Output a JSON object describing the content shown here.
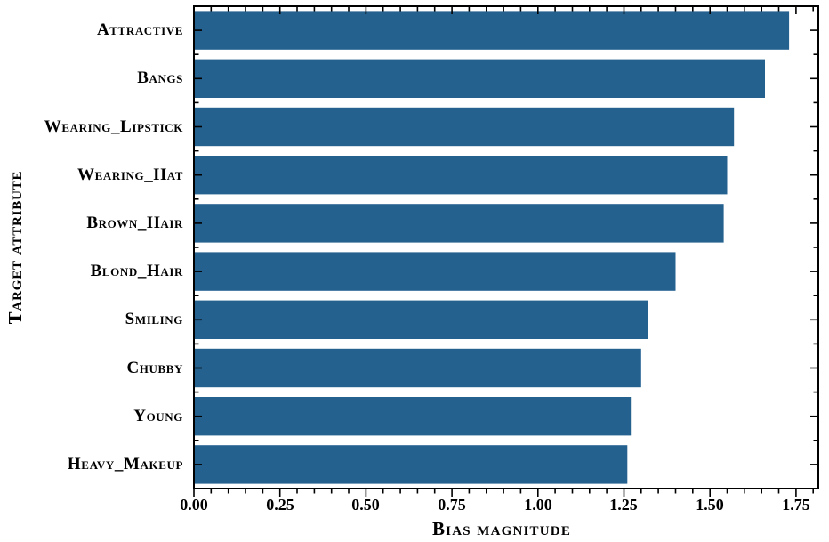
{
  "chart_data": {
    "type": "bar",
    "orientation": "horizontal",
    "title": "",
    "xlabel": "Bias magnitude",
    "ylabel": "Target attribute",
    "categories": [
      "Attractive",
      "Bangs",
      "Wearing_Lipstick",
      "Wearing_Hat",
      "Brown_Hair",
      "Blond_Hair",
      "Smiling",
      "Chubby",
      "Young",
      "Heavy_Makeup"
    ],
    "values": [
      1.73,
      1.66,
      1.57,
      1.55,
      1.54,
      1.4,
      1.32,
      1.3,
      1.27,
      1.26
    ],
    "xlim": [
      0,
      1.815
    ],
    "xticks": [
      0.0,
      0.25,
      0.5,
      0.75,
      1.0,
      1.25,
      1.5,
      1.75
    ],
    "xtick_labels": [
      "0.00",
      "0.25",
      "0.50",
      "0.75",
      "1.00",
      "1.25",
      "1.50",
      "1.75"
    ],
    "minor_tick_step": 0.05,
    "bar_color": "#25618F",
    "axis_color": "#000000",
    "grid": false,
    "legend": null
  }
}
